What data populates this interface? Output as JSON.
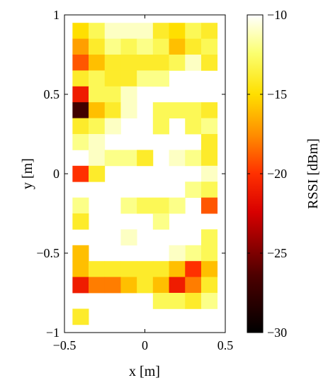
{
  "chart_data": {
    "type": "heatmap",
    "xlabel": "x [m]",
    "ylabel": "y [m]",
    "xlim": [
      -0.5,
      0.5
    ],
    "ylim": [
      -1,
      1
    ],
    "cell_size": 0.1,
    "x_ticks": [
      -0.5,
      0,
      0.5
    ],
    "x_tick_labels": [
      "−0.5",
      "0",
      "0.5"
    ],
    "y_ticks": [
      1,
      0.5,
      0,
      -0.5,
      -1
    ],
    "y_tick_labels": [
      "1",
      "0.5",
      "0",
      "−0.5",
      "−1"
    ],
    "grid": false,
    "colorbar": {
      "label": "RSSI [dBm]",
      "range": [
        -30,
        -10
      ],
      "ticks": [
        -10,
        -15,
        -20,
        -25,
        -30
      ],
      "tick_labels": [
        "−10",
        "−15",
        "−20",
        "−25",
        "−30"
      ],
      "placement": "right",
      "colormap": "hot"
    },
    "cells": [
      {
        "x": -0.4,
        "y": 0.9,
        "value": -15
      },
      {
        "x": -0.3,
        "y": 0.9,
        "value": -13
      },
      {
        "x": -0.2,
        "y": 0.9,
        "value": -11
      },
      {
        "x": -0.1,
        "y": 0.9,
        "value": -11
      },
      {
        "x": 0.0,
        "y": 0.9,
        "value": -11
      },
      {
        "x": 0.1,
        "y": 0.9,
        "value": -14
      },
      {
        "x": 0.2,
        "y": 0.9,
        "value": -15
      },
      {
        "x": 0.3,
        "y": 0.9,
        "value": -13
      },
      {
        "x": 0.4,
        "y": 0.9,
        "value": -14
      },
      {
        "x": -0.4,
        "y": 0.8,
        "value": -17
      },
      {
        "x": -0.3,
        "y": 0.8,
        "value": -14
      },
      {
        "x": -0.2,
        "y": 0.8,
        "value": -12
      },
      {
        "x": -0.1,
        "y": 0.8,
        "value": -13
      },
      {
        "x": 0.0,
        "y": 0.8,
        "value": -12
      },
      {
        "x": 0.1,
        "y": 0.8,
        "value": -13
      },
      {
        "x": 0.2,
        "y": 0.8,
        "value": -16
      },
      {
        "x": 0.3,
        "y": 0.8,
        "value": -14
      },
      {
        "x": 0.4,
        "y": 0.8,
        "value": -13
      },
      {
        "x": -0.4,
        "y": 0.7,
        "value": -19
      },
      {
        "x": -0.3,
        "y": 0.7,
        "value": -16
      },
      {
        "x": -0.2,
        "y": 0.7,
        "value": -14
      },
      {
        "x": -0.1,
        "y": 0.7,
        "value": -14
      },
      {
        "x": 0.0,
        "y": 0.7,
        "value": -14
      },
      {
        "x": 0.1,
        "y": 0.7,
        "value": -14
      },
      {
        "x": 0.2,
        "y": 0.7,
        "value": -13
      },
      {
        "x": 0.3,
        "y": 0.7,
        "value": -11
      },
      {
        "x": 0.4,
        "y": 0.7,
        "value": -14
      },
      {
        "x": -0.4,
        "y": 0.6,
        "value": -14
      },
      {
        "x": -0.3,
        "y": 0.6,
        "value": -13
      },
      {
        "x": -0.2,
        "y": 0.6,
        "value": -14
      },
      {
        "x": -0.1,
        "y": 0.6,
        "value": -14
      },
      {
        "x": 0.0,
        "y": 0.6,
        "value": -12
      },
      {
        "x": 0.1,
        "y": 0.6,
        "value": -12
      },
      {
        "x": -0.4,
        "y": 0.5,
        "value": -21
      },
      {
        "x": -0.3,
        "y": 0.5,
        "value": -13
      },
      {
        "x": -0.2,
        "y": 0.5,
        "value": -13
      },
      {
        "x": -0.1,
        "y": 0.5,
        "value": -11
      },
      {
        "x": -0.4,
        "y": 0.4,
        "value": -27
      },
      {
        "x": -0.3,
        "y": 0.4,
        "value": -16
      },
      {
        "x": -0.2,
        "y": 0.4,
        "value": -14
      },
      {
        "x": -0.1,
        "y": 0.4,
        "value": -11
      },
      {
        "x": 0.1,
        "y": 0.4,
        "value": -13
      },
      {
        "x": 0.2,
        "y": 0.4,
        "value": -13
      },
      {
        "x": 0.3,
        "y": 0.4,
        "value": -13
      },
      {
        "x": 0.4,
        "y": 0.4,
        "value": -14
      },
      {
        "x": -0.4,
        "y": 0.3,
        "value": -14
      },
      {
        "x": -0.3,
        "y": 0.3,
        "value": -13
      },
      {
        "x": -0.2,
        "y": 0.3,
        "value": -11
      },
      {
        "x": 0.1,
        "y": 0.3,
        "value": -13
      },
      {
        "x": 0.3,
        "y": 0.3,
        "value": -13
      },
      {
        "x": 0.4,
        "y": 0.3,
        "value": -12
      },
      {
        "x": -0.4,
        "y": 0.2,
        "value": -12
      },
      {
        "x": -0.3,
        "y": 0.2,
        "value": -11
      },
      {
        "x": 0.4,
        "y": 0.2,
        "value": -14
      },
      {
        "x": -0.3,
        "y": 0.1,
        "value": -11
      },
      {
        "x": -0.2,
        "y": 0.1,
        "value": -12
      },
      {
        "x": -0.1,
        "y": 0.1,
        "value": -12
      },
      {
        "x": 0.0,
        "y": 0.1,
        "value": -14
      },
      {
        "x": 0.2,
        "y": 0.1,
        "value": -11
      },
      {
        "x": 0.3,
        "y": 0.1,
        "value": -12
      },
      {
        "x": 0.4,
        "y": 0.1,
        "value": -14
      },
      {
        "x": -0.4,
        "y": 0.0,
        "value": -20
      },
      {
        "x": -0.3,
        "y": 0.0,
        "value": -14
      },
      {
        "x": 0.4,
        "y": 0.0,
        "value": -11
      },
      {
        "x": 0.3,
        "y": -0.1,
        "value": -12
      },
      {
        "x": 0.4,
        "y": -0.1,
        "value": -13
      },
      {
        "x": -0.4,
        "y": -0.2,
        "value": -12
      },
      {
        "x": -0.1,
        "y": -0.2,
        "value": -12
      },
      {
        "x": 0.0,
        "y": -0.2,
        "value": -13
      },
      {
        "x": 0.1,
        "y": -0.2,
        "value": -13
      },
      {
        "x": 0.2,
        "y": -0.2,
        "value": -12
      },
      {
        "x": 0.4,
        "y": -0.2,
        "value": -19
      },
      {
        "x": -0.4,
        "y": -0.3,
        "value": -14
      },
      {
        "x": 0.1,
        "y": -0.3,
        "value": -12
      },
      {
        "x": -0.1,
        "y": -0.4,
        "value": -11
      },
      {
        "x": 0.4,
        "y": -0.4,
        "value": -13
      },
      {
        "x": -0.4,
        "y": -0.5,
        "value": -16
      },
      {
        "x": 0.3,
        "y": -0.5,
        "value": -12
      },
      {
        "x": 0.4,
        "y": -0.5,
        "value": -13
      },
      {
        "x": 0.2,
        "y": -0.5,
        "value": -11
      },
      {
        "x": -0.4,
        "y": -0.6,
        "value": -16
      },
      {
        "x": -0.3,
        "y": -0.6,
        "value": -14
      },
      {
        "x": -0.2,
        "y": -0.6,
        "value": -14
      },
      {
        "x": -0.1,
        "y": -0.6,
        "value": -14
      },
      {
        "x": 0.0,
        "y": -0.6,
        "value": -14
      },
      {
        "x": 0.1,
        "y": -0.6,
        "value": -14
      },
      {
        "x": 0.2,
        "y": -0.6,
        "value": -16
      },
      {
        "x": 0.3,
        "y": -0.6,
        "value": -20
      },
      {
        "x": 0.4,
        "y": -0.6,
        "value": -16
      },
      {
        "x": -0.4,
        "y": -0.7,
        "value": -21
      },
      {
        "x": -0.3,
        "y": -0.7,
        "value": -18
      },
      {
        "x": -0.2,
        "y": -0.7,
        "value": -18
      },
      {
        "x": -0.1,
        "y": -0.7,
        "value": -16
      },
      {
        "x": 0.0,
        "y": -0.7,
        "value": -14
      },
      {
        "x": 0.1,
        "y": -0.7,
        "value": -16
      },
      {
        "x": 0.2,
        "y": -0.7,
        "value": -21
      },
      {
        "x": 0.3,
        "y": -0.7,
        "value": -18
      },
      {
        "x": 0.4,
        "y": -0.7,
        "value": -14
      },
      {
        "x": 0.1,
        "y": -0.8,
        "value": -13
      },
      {
        "x": 0.2,
        "y": -0.8,
        "value": -13
      },
      {
        "x": 0.3,
        "y": -0.8,
        "value": -14
      },
      {
        "x": 0.4,
        "y": -0.8,
        "value": -12
      },
      {
        "x": -0.4,
        "y": -0.9,
        "value": -14
      }
    ]
  }
}
